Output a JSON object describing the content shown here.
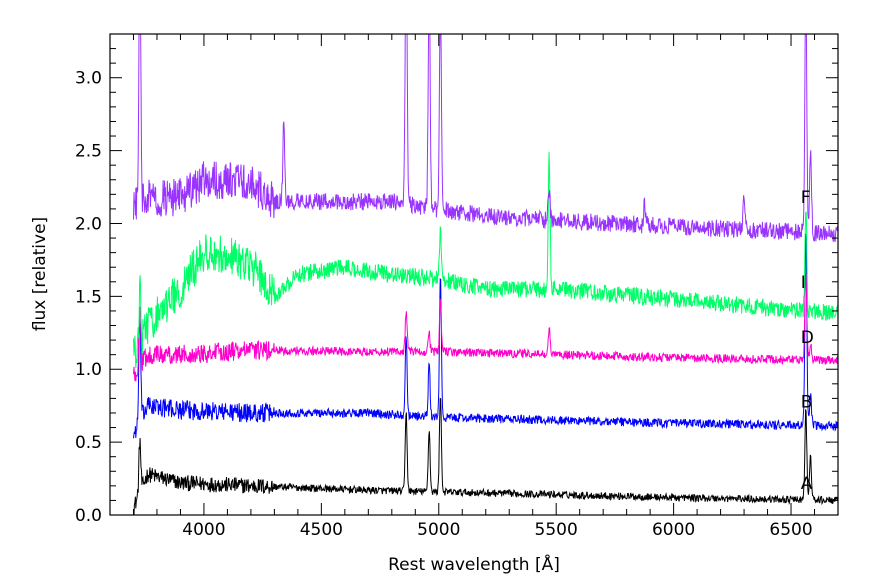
{
  "chart_data": {
    "type": "line",
    "xlabel": "Rest wavelength [Å]",
    "ylabel": "flux [relative]",
    "xlim": [
      3600,
      6700
    ],
    "ylim": [
      0,
      3.3
    ],
    "x_ticks": [
      4000,
      4500,
      5000,
      5500,
      6000,
      6500
    ],
    "y_ticks": [
      0.0,
      0.5,
      1.0,
      1.5,
      2.0,
      2.5,
      3.0
    ],
    "x_tick_labels": [
      "4000",
      "4500",
      "5000",
      "5500",
      "6000",
      "6500"
    ],
    "y_tick_labels": [
      "0.0",
      "0.5",
      "1.0",
      "1.5",
      "2.0",
      "2.5",
      "3.0"
    ],
    "grid": false,
    "x_range": [
      3700,
      6700
    ],
    "series": [
      {
        "name": "A",
        "color": "#000000",
        "label_at": [
          6350,
          0.22
        ],
        "noise": 0.025,
        "profile": [
          [
            3700,
            0.05
          ],
          [
            3760,
            0.28
          ],
          [
            3900,
            0.22
          ],
          [
            4200,
            0.2
          ],
          [
            4700,
            0.17
          ],
          [
            5500,
            0.14
          ],
          [
            6000,
            0.12
          ],
          [
            6700,
            0.1
          ]
        ],
        "spikes": [
          [
            3727,
            0.36
          ],
          [
            4861,
            0.55
          ],
          [
            4959,
            0.42
          ],
          [
            5007,
            0.68
          ],
          [
            6563,
            0.62
          ],
          [
            6583,
            0.3
          ]
        ]
      },
      {
        "name": "B",
        "color": "#0000ff",
        "label_at": [
          6350,
          0.78
        ],
        "noise": 0.03,
        "profile": [
          [
            3700,
            0.55
          ],
          [
            3760,
            0.75
          ],
          [
            3900,
            0.72
          ],
          [
            4200,
            0.7
          ],
          [
            4700,
            0.7
          ],
          [
            5000,
            0.67
          ],
          [
            5500,
            0.65
          ],
          [
            6000,
            0.63
          ],
          [
            6700,
            0.61
          ]
        ],
        "spikes": [
          [
            3727,
            0.72
          ],
          [
            4861,
            0.55
          ],
          [
            4959,
            0.35
          ],
          [
            5007,
            0.95
          ],
          [
            6563,
            1.35
          ],
          [
            6583,
            0.2
          ]
        ]
      },
      {
        "name": "D",
        "color": "#ff00cc",
        "label_at": [
          6350,
          1.22
        ],
        "noise": 0.03,
        "profile": [
          [
            3700,
            0.95
          ],
          [
            3760,
            1.1
          ],
          [
            3900,
            1.1
          ],
          [
            4200,
            1.13
          ],
          [
            4700,
            1.12
          ],
          [
            5000,
            1.12
          ],
          [
            5500,
            1.1
          ],
          [
            6000,
            1.08
          ],
          [
            6700,
            1.06
          ]
        ],
        "spikes": [
          [
            3727,
            0.42
          ],
          [
            4861,
            0.28
          ],
          [
            4959,
            0.12
          ],
          [
            5007,
            0.35
          ],
          [
            5470,
            0.18
          ],
          [
            6563,
            0.6
          ],
          [
            6583,
            0.12
          ]
        ]
      },
      {
        "name": "I",
        "color": "#00ff66",
        "label_at": [
          6350,
          1.6
        ],
        "noise": 0.06,
        "profile": [
          [
            3700,
            1.1
          ],
          [
            3760,
            1.3
          ],
          [
            3900,
            1.55
          ],
          [
            4000,
            1.8
          ],
          [
            4100,
            1.78
          ],
          [
            4200,
            1.72
          ],
          [
            4300,
            1.5
          ],
          [
            4400,
            1.65
          ],
          [
            4600,
            1.7
          ],
          [
            4800,
            1.65
          ],
          [
            5000,
            1.62
          ],
          [
            5200,
            1.55
          ],
          [
            5500,
            1.55
          ],
          [
            6000,
            1.48
          ],
          [
            6400,
            1.42
          ],
          [
            6700,
            1.38
          ]
        ],
        "spikes": [
          [
            3727,
            0.35
          ],
          [
            5007,
            0.35
          ],
          [
            5470,
            0.9
          ],
          [
            6563,
            0.75
          ]
        ]
      },
      {
        "name": "F",
        "color": "#9933ff",
        "label_at": [
          6350,
          2.18
        ],
        "noise": 0.06,
        "profile": [
          [
            3700,
            2.1
          ],
          [
            3760,
            2.18
          ],
          [
            3900,
            2.18
          ],
          [
            4000,
            2.3
          ],
          [
            4200,
            2.28
          ],
          [
            4300,
            2.15
          ],
          [
            4500,
            2.15
          ],
          [
            4800,
            2.15
          ],
          [
            5000,
            2.1
          ],
          [
            5200,
            2.05
          ],
          [
            5500,
            2.02
          ],
          [
            6000,
            1.98
          ],
          [
            6400,
            1.95
          ],
          [
            6700,
            1.93
          ]
        ],
        "spikes": [
          [
            3727,
            1.9
          ],
          [
            4340,
            0.55
          ],
          [
            4861,
            1.9
          ],
          [
            4959,
            1.5
          ],
          [
            5007,
            1.4
          ],
          [
            5470,
            0.2
          ],
          [
            5876,
            0.15
          ],
          [
            6300,
            0.2
          ],
          [
            6563,
            1.7
          ],
          [
            6583,
            0.55
          ]
        ]
      }
    ]
  }
}
